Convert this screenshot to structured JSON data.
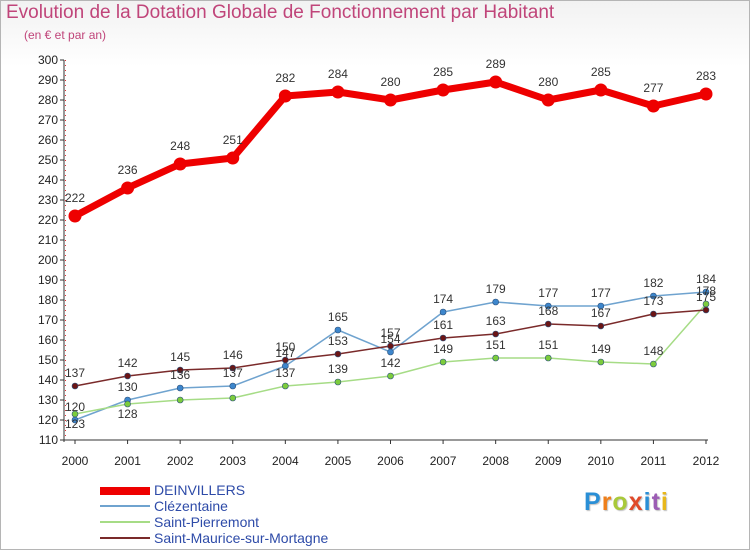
{
  "title": "Evolution de la Dotation Globale de Fonctionnement par Habitant",
  "subtitle": "(en € et par an)",
  "logo_text": "Proxiti",
  "chart_data": {
    "type": "line",
    "title": "Evolution de la Dotation Globale de Fonctionnement par Habitant",
    "subtitle": "(en € et par an)",
    "xlabel": "",
    "ylabel": "",
    "x": [
      "2000",
      "2001",
      "2002",
      "2003",
      "2004",
      "2005",
      "2006",
      "2007",
      "2008",
      "2009",
      "2010",
      "2011",
      "2012"
    ],
    "ylim": [
      110,
      300
    ],
    "yticks": [
      110,
      120,
      130,
      140,
      150,
      160,
      170,
      180,
      190,
      200,
      210,
      220,
      230,
      240,
      250,
      260,
      270,
      280,
      290,
      300
    ],
    "grid": false,
    "legend_position": "bottom-left",
    "series": [
      {
        "name": "DEINVILLERS",
        "color": "#ee0000",
        "markerColor": "#ee0000",
        "width": 7,
        "markerRadius": 6.5,
        "values": [
          222,
          236,
          248,
          251,
          282,
          284,
          280,
          285,
          289,
          280,
          285,
          277,
          283
        ],
        "labels": [
          "222",
          "236",
          "248",
          "251",
          "282",
          "284",
          "280",
          "285",
          "289",
          "280",
          "285",
          "277",
          "283"
        ]
      },
      {
        "name": "Clézentaine",
        "color": "#6fa3cf",
        "markerColor": "#3d86cc",
        "width": 1.5,
        "markerRadius": 3,
        "values": [
          120,
          130,
          136,
          137,
          147,
          165,
          154,
          174,
          179,
          177,
          177,
          182,
          184
        ],
        "labels": [
          "120",
          "130",
          "136",
          "137",
          "147",
          "165",
          "154",
          "174",
          "179",
          "177",
          "177",
          "182",
          "184"
        ]
      },
      {
        "name": "Saint-Pierremont",
        "color": "#a6dc86",
        "markerColor": "#7ccc3c",
        "width": 1.5,
        "markerRadius": 3,
        "values": [
          123,
          128,
          130,
          131,
          137,
          139,
          142,
          149,
          151,
          151,
          149,
          148,
          178
        ],
        "labels": [
          "123",
          "128",
          "",
          "",
          "137",
          "139",
          "142",
          "149",
          "151",
          "151",
          "149",
          "148",
          "178"
        ]
      },
      {
        "name": "Saint-Maurice-sur-Mortagne",
        "color": "#7a2a2a",
        "markerColor": "#6b1515",
        "width": 1.5,
        "markerRadius": 3,
        "values": [
          137,
          142,
          145,
          146,
          150,
          153,
          157,
          161,
          163,
          168,
          167,
          173,
          175
        ],
        "labels": [
          "137",
          "142",
          "145",
          "146",
          "150",
          "153",
          "157",
          "161",
          "163",
          "168",
          "167",
          "173",
          "175"
        ]
      }
    ]
  }
}
